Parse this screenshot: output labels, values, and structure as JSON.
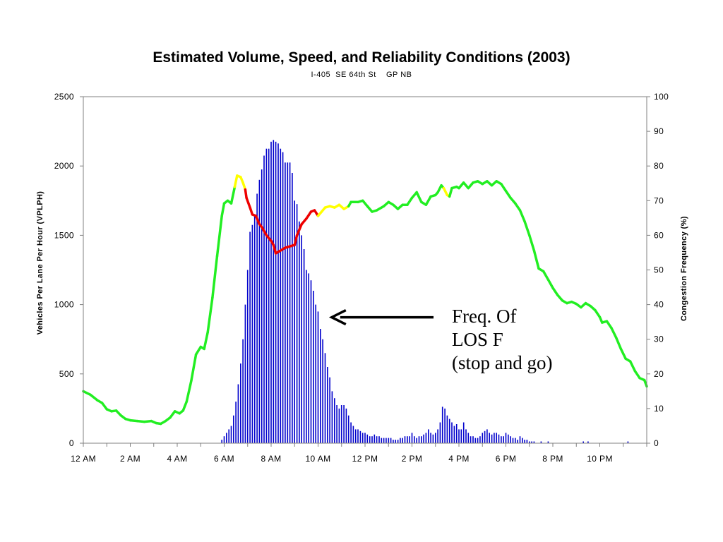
{
  "chart_data": {
    "type": "bar",
    "title": "Estimated Volume, Speed, and Reliability Conditions (2003)",
    "subtitle": "I-405  SE 64th St    GP NB",
    "xlabel": "",
    "ylabel": "Vehicles Per Lane Per Hour (VPLPH)",
    "y2label": "Congestion Frequency (%)",
    "ylim": [
      0,
      2500
    ],
    "y2lim": [
      0,
      100
    ],
    "xlim": [
      0,
      24
    ],
    "yticks": [
      "0",
      "500",
      "1000",
      "1500",
      "2000",
      "2500"
    ],
    "y2ticks": [
      "0",
      "10",
      "20",
      "30",
      "40",
      "50",
      "60",
      "70",
      "80",
      "90",
      "100"
    ],
    "xticks": [
      {
        "x": 0,
        "label": "12 AM"
      },
      {
        "x": 2,
        "label": "2 AM"
      },
      {
        "x": 4,
        "label": "4 AM"
      },
      {
        "x": 6,
        "label": "6 AM"
      },
      {
        "x": 8,
        "label": "8 AM"
      },
      {
        "x": 10,
        "label": "10 AM"
      },
      {
        "x": 12,
        "label": "12 PM"
      },
      {
        "x": 14,
        "label": "2 PM"
      },
      {
        "x": 16,
        "label": "4 PM"
      },
      {
        "x": 18,
        "label": "6 PM"
      },
      {
        "x": 20,
        "label": "8 PM"
      },
      {
        "x": 22,
        "label": "10 PM"
      }
    ],
    "grid": false,
    "legend": "none",
    "series": [
      {
        "axis": "right",
        "type": "bar",
        "color": "#0000cc",
        "x": [
          5.9,
          6.0,
          6.1,
          6.2,
          6.3,
          6.4,
          6.5,
          6.6,
          6.7,
          6.8,
          6.9,
          7.0,
          7.1,
          7.2,
          7.3,
          7.4,
          7.5,
          7.6,
          7.7,
          7.8,
          7.9,
          8.0,
          8.1,
          8.2,
          8.3,
          8.4,
          8.5,
          8.6,
          8.7,
          8.8,
          8.9,
          9.0,
          9.1,
          9.2,
          9.3,
          9.4,
          9.5,
          9.6,
          9.7,
          9.8,
          9.9,
          10.0,
          10.1,
          10.2,
          10.3,
          10.4,
          10.5,
          10.6,
          10.7,
          10.8,
          10.9,
          11.0,
          11.1,
          11.2,
          11.3,
          11.4,
          11.5,
          11.6,
          11.7,
          11.8,
          11.9,
          12.0,
          12.1,
          12.2,
          12.3,
          12.4,
          12.5,
          12.6,
          12.7,
          12.8,
          12.9,
          13.0,
          13.1,
          13.2,
          13.3,
          13.4,
          13.5,
          13.6,
          13.7,
          13.8,
          13.9,
          14.0,
          14.1,
          14.2,
          14.3,
          14.4,
          14.5,
          14.6,
          14.7,
          14.8,
          14.9,
          15.0,
          15.1,
          15.2,
          15.3,
          15.4,
          15.5,
          15.6,
          15.7,
          15.8,
          15.9,
          16.0,
          16.1,
          16.2,
          16.3,
          16.4,
          16.5,
          16.6,
          16.7,
          16.8,
          16.9,
          17.0,
          17.1,
          17.2,
          17.3,
          17.4,
          17.5,
          17.6,
          17.7,
          17.8,
          17.9,
          18.0,
          18.1,
          18.2,
          18.3,
          18.4,
          18.5,
          18.6,
          18.7,
          18.8,
          18.9,
          19.0,
          19.1,
          19.2,
          19.5,
          19.8,
          21.3,
          21.5,
          23.2
        ],
        "values": [
          1.0,
          2.0,
          3.0,
          4.0,
          5.0,
          8.0,
          12.0,
          17.0,
          23.0,
          30.0,
          40.0,
          50.0,
          61.0,
          63.0,
          66.0,
          72.0,
          76.0,
          79.0,
          83.0,
          85.0,
          85.0,
          87.0,
          87.5,
          87.0,
          86.5,
          85.0,
          84.0,
          81.0,
          81.0,
          81.0,
          78.0,
          70.0,
          69.0,
          64.0,
          60.0,
          56.0,
          50.0,
          49.0,
          47.0,
          44.0,
          40.0,
          38.0,
          33.0,
          30.0,
          26.0,
          22.0,
          19.0,
          15.0,
          13.0,
          11.0,
          10.0,
          11.0,
          11.0,
          10.0,
          8.0,
          6.0,
          5.0,
          4.0,
          4.0,
          3.5,
          3.0,
          3.0,
          2.5,
          2.0,
          2.0,
          2.5,
          2.0,
          2.0,
          1.5,
          1.5,
          1.5,
          1.5,
          1.5,
          1.0,
          1.0,
          1.0,
          1.5,
          1.5,
          2.0,
          2.0,
          2.0,
          3.0,
          2.0,
          1.5,
          2.0,
          2.0,
          2.5,
          3.0,
          4.0,
          3.0,
          2.5,
          3.0,
          4.0,
          6.0,
          10.5,
          10.0,
          8.0,
          7.0,
          6.0,
          5.0,
          5.5,
          4.0,
          4.0,
          6.0,
          4.0,
          3.0,
          2.0,
          2.0,
          1.5,
          1.5,
          2.0,
          3.0,
          3.5,
          4.0,
          3.0,
          2.5,
          3.0,
          3.0,
          2.5,
          2.0,
          2.0,
          3.0,
          2.5,
          2.0,
          1.5,
          1.5,
          1.0,
          2.0,
          1.5,
          1.0,
          1.0,
          0.5,
          0.5,
          0.5,
          0.5,
          0.5,
          0.5,
          0.5,
          0.5
        ]
      },
      {
        "axis": "left",
        "type": "line",
        "color_key": {
          "green": "#22ee22",
          "yellow": "#ffff00",
          "red": "#ee0000"
        },
        "points": [
          {
            "x": 0.0,
            "y": 375,
            "c": "green"
          },
          {
            "x": 0.3,
            "y": 350,
            "c": "green"
          },
          {
            "x": 0.6,
            "y": 310,
            "c": "green"
          },
          {
            "x": 0.8,
            "y": 290,
            "c": "green"
          },
          {
            "x": 1.0,
            "y": 245,
            "c": "green"
          },
          {
            "x": 1.2,
            "y": 230,
            "c": "green"
          },
          {
            "x": 1.4,
            "y": 235,
            "c": "green"
          },
          {
            "x": 1.6,
            "y": 200,
            "c": "green"
          },
          {
            "x": 1.8,
            "y": 175,
            "c": "green"
          },
          {
            "x": 2.0,
            "y": 165,
            "c": "green"
          },
          {
            "x": 2.3,
            "y": 160,
            "c": "green"
          },
          {
            "x": 2.6,
            "y": 155,
            "c": "green"
          },
          {
            "x": 2.9,
            "y": 160,
            "c": "green"
          },
          {
            "x": 3.1,
            "y": 145,
            "c": "green"
          },
          {
            "x": 3.3,
            "y": 140,
            "c": "green"
          },
          {
            "x": 3.5,
            "y": 160,
            "c": "green"
          },
          {
            "x": 3.7,
            "y": 185,
            "c": "green"
          },
          {
            "x": 3.9,
            "y": 230,
            "c": "green"
          },
          {
            "x": 4.1,
            "y": 215,
            "c": "green"
          },
          {
            "x": 4.25,
            "y": 235,
            "c": "green"
          },
          {
            "x": 4.4,
            "y": 300,
            "c": "green"
          },
          {
            "x": 4.6,
            "y": 450,
            "c": "green"
          },
          {
            "x": 4.8,
            "y": 640,
            "c": "green"
          },
          {
            "x": 5.0,
            "y": 695,
            "c": "green"
          },
          {
            "x": 5.15,
            "y": 680,
            "c": "green"
          },
          {
            "x": 5.3,
            "y": 800,
            "c": "green"
          },
          {
            "x": 5.5,
            "y": 1050,
            "c": "green"
          },
          {
            "x": 5.7,
            "y": 1350,
            "c": "green"
          },
          {
            "x": 5.9,
            "y": 1640,
            "c": "green"
          },
          {
            "x": 6.0,
            "y": 1730,
            "c": "green"
          },
          {
            "x": 6.15,
            "y": 1750,
            "c": "green"
          },
          {
            "x": 6.3,
            "y": 1730,
            "c": "green"
          },
          {
            "x": 6.45,
            "y": 1850,
            "c": "green"
          },
          {
            "x": 6.55,
            "y": 1930,
            "c": "yellow"
          },
          {
            "x": 6.7,
            "y": 1920,
            "c": "yellow"
          },
          {
            "x": 6.8,
            "y": 1880,
            "c": "yellow"
          },
          {
            "x": 6.9,
            "y": 1830,
            "c": "yellow"
          },
          {
            "x": 6.95,
            "y": 1770,
            "c": "red"
          },
          {
            "x": 7.1,
            "y": 1700,
            "c": "red"
          },
          {
            "x": 7.2,
            "y": 1650,
            "c": "red"
          },
          {
            "x": 7.35,
            "y": 1640,
            "c": "red"
          },
          {
            "x": 7.5,
            "y": 1580,
            "c": "red"
          },
          {
            "x": 7.6,
            "y": 1560,
            "c": "red"
          },
          {
            "x": 7.8,
            "y": 1500,
            "c": "red"
          },
          {
            "x": 8.0,
            "y": 1460,
            "c": "red"
          },
          {
            "x": 8.1,
            "y": 1430,
            "c": "red"
          },
          {
            "x": 8.2,
            "y": 1370,
            "c": "red"
          },
          {
            "x": 8.4,
            "y": 1390,
            "c": "red"
          },
          {
            "x": 8.6,
            "y": 1410,
            "c": "red"
          },
          {
            "x": 8.8,
            "y": 1420,
            "c": "red"
          },
          {
            "x": 9.0,
            "y": 1430,
            "c": "red"
          },
          {
            "x": 9.1,
            "y": 1500,
            "c": "red"
          },
          {
            "x": 9.3,
            "y": 1580,
            "c": "red"
          },
          {
            "x": 9.5,
            "y": 1620,
            "c": "red"
          },
          {
            "x": 9.7,
            "y": 1670,
            "c": "red"
          },
          {
            "x": 9.85,
            "y": 1680,
            "c": "red"
          },
          {
            "x": 10.0,
            "y": 1640,
            "c": "red"
          },
          {
            "x": 10.15,
            "y": 1670,
            "c": "yellow"
          },
          {
            "x": 10.3,
            "y": 1700,
            "c": "yellow"
          },
          {
            "x": 10.5,
            "y": 1710,
            "c": "yellow"
          },
          {
            "x": 10.7,
            "y": 1700,
            "c": "yellow"
          },
          {
            "x": 10.9,
            "y": 1720,
            "c": "yellow"
          },
          {
            "x": 11.1,
            "y": 1690,
            "c": "yellow"
          },
          {
            "x": 11.3,
            "y": 1710,
            "c": "yellow"
          },
          {
            "x": 11.4,
            "y": 1740,
            "c": "green"
          },
          {
            "x": 11.7,
            "y": 1740,
            "c": "green"
          },
          {
            "x": 11.9,
            "y": 1750,
            "c": "green"
          },
          {
            "x": 12.1,
            "y": 1710,
            "c": "green"
          },
          {
            "x": 12.3,
            "y": 1670,
            "c": "green"
          },
          {
            "x": 12.5,
            "y": 1680,
            "c": "green"
          },
          {
            "x": 12.8,
            "y": 1710,
            "c": "green"
          },
          {
            "x": 13.0,
            "y": 1740,
            "c": "green"
          },
          {
            "x": 13.2,
            "y": 1720,
            "c": "green"
          },
          {
            "x": 13.4,
            "y": 1690,
            "c": "green"
          },
          {
            "x": 13.6,
            "y": 1720,
            "c": "green"
          },
          {
            "x": 13.8,
            "y": 1720,
            "c": "green"
          },
          {
            "x": 14.0,
            "y": 1770,
            "c": "green"
          },
          {
            "x": 14.2,
            "y": 1810,
            "c": "green"
          },
          {
            "x": 14.4,
            "y": 1740,
            "c": "green"
          },
          {
            "x": 14.6,
            "y": 1720,
            "c": "green"
          },
          {
            "x": 14.8,
            "y": 1780,
            "c": "green"
          },
          {
            "x": 15.0,
            "y": 1790,
            "c": "green"
          },
          {
            "x": 15.1,
            "y": 1810,
            "c": "green"
          },
          {
            "x": 15.25,
            "y": 1860,
            "c": "green"
          },
          {
            "x": 15.35,
            "y": 1840,
            "c": "green"
          },
          {
            "x": 15.5,
            "y": 1790,
            "c": "yellow"
          },
          {
            "x": 15.6,
            "y": 1780,
            "c": "yellow"
          },
          {
            "x": 15.7,
            "y": 1840,
            "c": "green"
          },
          {
            "x": 15.9,
            "y": 1850,
            "c": "green"
          },
          {
            "x": 16.0,
            "y": 1840,
            "c": "green"
          },
          {
            "x": 16.2,
            "y": 1880,
            "c": "green"
          },
          {
            "x": 16.4,
            "y": 1840,
            "c": "green"
          },
          {
            "x": 16.6,
            "y": 1880,
            "c": "green"
          },
          {
            "x": 16.8,
            "y": 1890,
            "c": "green"
          },
          {
            "x": 17.0,
            "y": 1870,
            "c": "green"
          },
          {
            "x": 17.2,
            "y": 1890,
            "c": "green"
          },
          {
            "x": 17.4,
            "y": 1860,
            "c": "green"
          },
          {
            "x": 17.6,
            "y": 1890,
            "c": "green"
          },
          {
            "x": 17.8,
            "y": 1870,
            "c": "green"
          },
          {
            "x": 18.0,
            "y": 1820,
            "c": "green"
          },
          {
            "x": 18.2,
            "y": 1770,
            "c": "green"
          },
          {
            "x": 18.4,
            "y": 1730,
            "c": "green"
          },
          {
            "x": 18.6,
            "y": 1680,
            "c": "green"
          },
          {
            "x": 18.8,
            "y": 1600,
            "c": "green"
          },
          {
            "x": 19.0,
            "y": 1500,
            "c": "green"
          },
          {
            "x": 19.2,
            "y": 1390,
            "c": "green"
          },
          {
            "x": 19.4,
            "y": 1260,
            "c": "green"
          },
          {
            "x": 19.6,
            "y": 1240,
            "c": "green"
          },
          {
            "x": 19.8,
            "y": 1180,
            "c": "green"
          },
          {
            "x": 20.0,
            "y": 1120,
            "c": "green"
          },
          {
            "x": 20.2,
            "y": 1070,
            "c": "green"
          },
          {
            "x": 20.4,
            "y": 1030,
            "c": "green"
          },
          {
            "x": 20.6,
            "y": 1010,
            "c": "green"
          },
          {
            "x": 20.8,
            "y": 1020,
            "c": "green"
          },
          {
            "x": 21.0,
            "y": 1005,
            "c": "green"
          },
          {
            "x": 21.2,
            "y": 980,
            "c": "green"
          },
          {
            "x": 21.4,
            "y": 1010,
            "c": "green"
          },
          {
            "x": 21.6,
            "y": 990,
            "c": "green"
          },
          {
            "x": 21.8,
            "y": 960,
            "c": "green"
          },
          {
            "x": 22.0,
            "y": 910,
            "c": "green"
          },
          {
            "x": 22.1,
            "y": 870,
            "c": "green"
          },
          {
            "x": 22.3,
            "y": 880,
            "c": "green"
          },
          {
            "x": 22.5,
            "y": 830,
            "c": "green"
          },
          {
            "x": 22.7,
            "y": 760,
            "c": "green"
          },
          {
            "x": 22.9,
            "y": 680,
            "c": "green"
          },
          {
            "x": 23.1,
            "y": 610,
            "c": "green"
          },
          {
            "x": 23.3,
            "y": 590,
            "c": "green"
          },
          {
            "x": 23.5,
            "y": 520,
            "c": "green"
          },
          {
            "x": 23.7,
            "y": 470,
            "c": "green"
          },
          {
            "x": 23.9,
            "y": 455,
            "c": "green"
          },
          {
            "x": 24.0,
            "y": 410,
            "c": "green"
          }
        ]
      }
    ],
    "annotation": {
      "lines": [
        "Freq. Of",
        "LOS F",
        "(stop and go)"
      ],
      "arrow_target": {
        "x": 10.4,
        "y": 1000
      }
    }
  }
}
